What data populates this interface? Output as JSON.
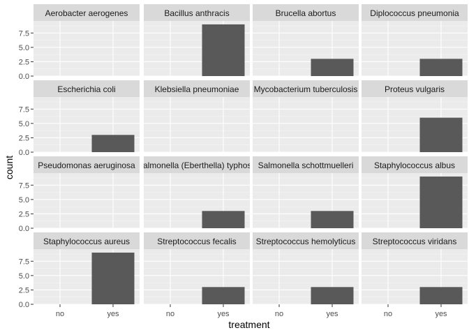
{
  "chart_data": {
    "type": "bar",
    "facet_layout": "wrap 4x4",
    "x_label": "treatment",
    "y_label": "count",
    "x_categories": [
      "no",
      "yes"
    ],
    "y_ticks": [
      "0.0",
      "2.5",
      "5.0",
      "7.5"
    ],
    "ylim": [
      0,
      9.6
    ],
    "grid": true,
    "colors": {
      "panel_bg": "#ebebeb",
      "strip_bg": "#d9d9d9",
      "grid_major": "#ffffff",
      "grid_minor": "#f5f5f5",
      "bar_fill": "#595959"
    },
    "facets": [
      {
        "label": "Aerobacter aerogenes",
        "values": {
          "no": 0,
          "yes": 0
        }
      },
      {
        "label": "Bacillus anthracis",
        "values": {
          "no": 0,
          "yes": 9
        }
      },
      {
        "label": "Brucella abortus",
        "values": {
          "no": 0,
          "yes": 3
        }
      },
      {
        "label": "Diplococcus pneumonia",
        "values": {
          "no": 0,
          "yes": 3
        }
      },
      {
        "label": "Escherichia coli",
        "values": {
          "no": 0,
          "yes": 3
        }
      },
      {
        "label": "Klebsiella pneumoniae",
        "values": {
          "no": 0,
          "yes": 0
        }
      },
      {
        "label": "Mycobacterium tuberculosis",
        "values": {
          "no": 0,
          "yes": 0
        }
      },
      {
        "label": "Proteus vulgaris",
        "values": {
          "no": 0,
          "yes": 6
        }
      },
      {
        "label": "Pseudomonas aeruginosa",
        "values": {
          "no": 0,
          "yes": 0
        }
      },
      {
        "label": "Salmonella (Eberthella) typhosa",
        "values": {
          "no": 0,
          "yes": 3
        }
      },
      {
        "label": "Salmonella schottmuelleri",
        "values": {
          "no": 0,
          "yes": 3
        }
      },
      {
        "label": "Staphylococcus albus",
        "values": {
          "no": 0,
          "yes": 9
        }
      },
      {
        "label": "Staphylococcus aureus",
        "values": {
          "no": 0,
          "yes": 9
        }
      },
      {
        "label": "Streptococcus fecalis",
        "values": {
          "no": 0,
          "yes": 3
        }
      },
      {
        "label": "Streptococcus hemolyticus",
        "values": {
          "no": 0,
          "yes": 3
        }
      },
      {
        "label": "Streptococcus viridans",
        "values": {
          "no": 0,
          "yes": 3
        }
      }
    ]
  }
}
